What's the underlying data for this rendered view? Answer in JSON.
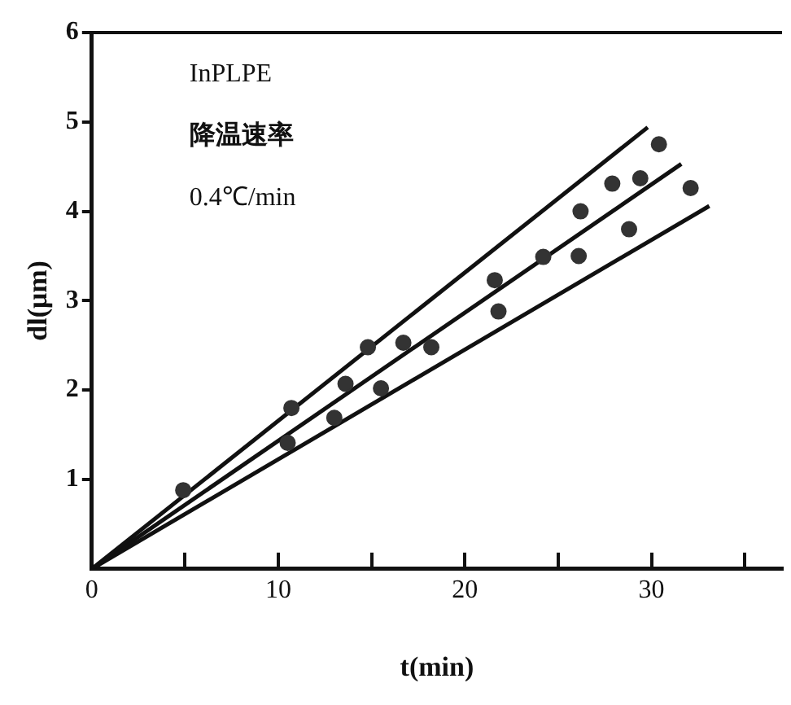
{
  "chart_data": {
    "type": "scatter",
    "xlabel": "t(min)",
    "ylabel": "dl(μm)",
    "annotations": [
      "InPLPE",
      "降温速率",
      "0.4℃/min"
    ],
    "xlim": [
      0,
      37
    ],
    "ylim": [
      0,
      6
    ],
    "xticks": [
      0,
      {
        "value": 5,
        "label": null
      },
      10,
      {
        "value": 15,
        "label": null
      },
      20,
      {
        "value": 25,
        "label": null
      },
      30,
      {
        "value": 35,
        "label": null
      }
    ],
    "yticks": [
      1,
      2,
      3,
      4,
      5,
      6
    ],
    "grid": false,
    "legend": false,
    "line_style": "solid",
    "series": [
      {
        "marker": "circle",
        "color": "#333333",
        "x": [
          4.9,
          10.7,
          14.8,
          21.6,
          24.2,
          26.2,
          26.1,
          27.9,
          29.4,
          30.4,
          32.1,
          28.8,
          21.8,
          10.5,
          13.0,
          13.6,
          15.5,
          16.7,
          18.2
        ],
        "values": [
          0.88,
          1.8,
          2.48,
          3.23,
          3.49,
          4.0,
          3.5,
          4.31,
          4.37,
          4.75,
          4.26,
          3.8,
          2.88,
          1.41,
          1.69,
          2.07,
          2.02,
          2.53,
          2.48
        ]
      },
      {
        "type": "line",
        "marker": "none",
        "color": "#111111",
        "x": [
          0,
          29.8
        ],
        "values": [
          0,
          4.94
        ]
      },
      {
        "type": "line",
        "marker": "none",
        "color": "#111111",
        "x": [
          0,
          31.6
        ],
        "values": [
          0,
          4.53
        ]
      },
      {
        "type": "line",
        "marker": "none",
        "color": "#111111",
        "x": [
          0,
          33.1
        ],
        "values": [
          0,
          4.06
        ]
      }
    ]
  }
}
